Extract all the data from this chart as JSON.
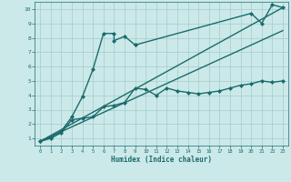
{
  "xlabel": "Humidex (Indice chaleur)",
  "ylabel": "",
  "bg_color": "#cce9e9",
  "line_color": "#1a6b6b",
  "grid_color": "#aacfcf",
  "xlim": [
    -0.5,
    23.5
  ],
  "ylim": [
    0.5,
    10.5
  ],
  "xticks": [
    0,
    1,
    2,
    3,
    4,
    5,
    6,
    7,
    8,
    9,
    10,
    11,
    12,
    13,
    14,
    15,
    16,
    17,
    18,
    19,
    20,
    21,
    22,
    23
  ],
  "yticks": [
    1,
    2,
    3,
    4,
    5,
    6,
    7,
    8,
    9,
    10
  ],
  "series": [
    {
      "x": [
        0,
        1,
        2,
        3,
        4,
        5,
        6,
        7,
        7,
        8,
        9
      ],
      "y": [
        0.8,
        1.1,
        1.5,
        2.5,
        3.9,
        5.8,
        8.3,
        8.3,
        7.8,
        8.1,
        7.5
      ],
      "marker": "D",
      "markersize": 2.0,
      "linewidth": 1.0
    },
    {
      "x": [
        9,
        20,
        21,
        22,
        23
      ],
      "y": [
        7.5,
        9.7,
        9.0,
        10.3,
        10.1
      ],
      "marker": "D",
      "markersize": 2.0,
      "linewidth": 1.0
    },
    {
      "x": [
        0,
        1,
        2,
        3,
        4,
        5,
        6,
        7,
        8,
        9,
        10,
        11,
        12,
        13,
        14,
        15,
        16,
        17,
        18,
        19,
        20,
        21,
        22,
        23
      ],
      "y": [
        0.8,
        1.0,
        1.4,
        2.3,
        2.4,
        2.5,
        3.2,
        3.3,
        3.5,
        4.5,
        4.4,
        4.0,
        4.5,
        4.3,
        4.2,
        4.1,
        4.2,
        4.3,
        4.5,
        4.7,
        4.8,
        5.0,
        4.9,
        5.0
      ],
      "marker": "D",
      "markersize": 2.0,
      "linewidth": 1.0
    },
    {
      "x": [
        0,
        23
      ],
      "y": [
        0.8,
        10.1
      ],
      "marker": null,
      "markersize": 0,
      "linewidth": 1.0
    },
    {
      "x": [
        0,
        23
      ],
      "y": [
        0.8,
        8.5
      ],
      "marker": null,
      "markersize": 0,
      "linewidth": 1.0
    }
  ]
}
